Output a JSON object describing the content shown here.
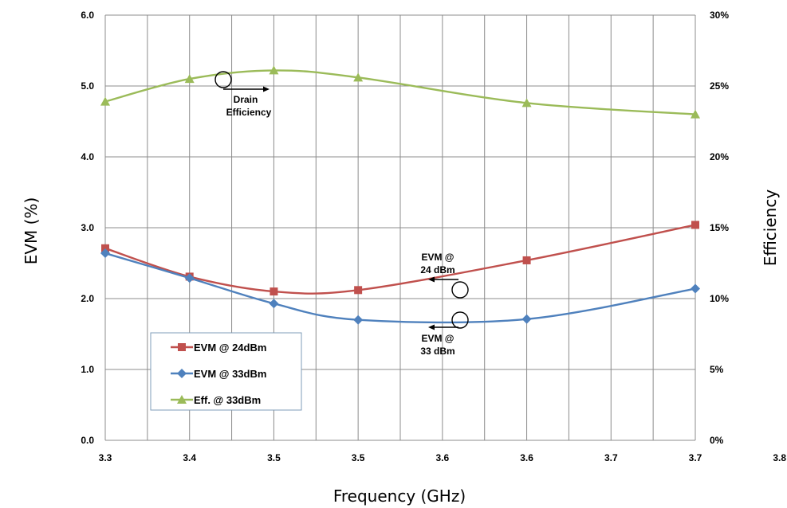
{
  "chart_data": {
    "type": "line",
    "x_ticks": [
      "3.3",
      "3.4",
      "3.5",
      "3.5",
      "3.6",
      "3.6",
      "3.7",
      "3.7",
      "3.8"
    ],
    "y_left_ticks": [
      "0.0",
      "1.0",
      "2.0",
      "3.0",
      "4.0",
      "5.0",
      "6.0"
    ],
    "y_right_ticks": [
      "0%",
      "5%",
      "10%",
      "15%",
      "20%",
      "25%",
      "30%"
    ],
    "xlabel": "Frequency (GHz)",
    "ylabel": "EVM (%)",
    "ylabel_right": "Efficiency",
    "ylim": [
      0,
      6
    ],
    "ylim_right": [
      0,
      30
    ],
    "grid": true,
    "legend_position": "bottom-left",
    "series": [
      {
        "name": "EVM @ 24dBm",
        "axis": "left",
        "color": "#c0504d",
        "marker": "square",
        "points": [
          [
            0,
            2.71
          ],
          [
            2,
            2.31
          ],
          [
            4,
            2.1
          ],
          [
            6,
            2.12
          ],
          [
            10,
            2.54
          ],
          [
            14,
            3.04
          ]
        ]
      },
      {
        "name": "EVM @ 33dBm",
        "axis": "left",
        "color": "#4f81bd",
        "marker": "diamond",
        "points": [
          [
            0,
            2.64
          ],
          [
            2,
            2.29
          ],
          [
            4,
            1.93
          ],
          [
            6,
            1.7
          ],
          [
            10,
            1.71
          ],
          [
            14,
            2.14
          ]
        ]
      },
      {
        "name": "Eff. @ 33dBm",
        "axis": "right",
        "color": "#9bbb59",
        "marker": "triangle",
        "points": [
          [
            0,
            23.9
          ],
          [
            2,
            25.5
          ],
          [
            4,
            26.1
          ],
          [
            6,
            25.6
          ],
          [
            10,
            23.8
          ],
          [
            14,
            23.0
          ]
        ]
      }
    ],
    "annotations": [
      {
        "lines": [
          "Drain",
          "Efficiency"
        ]
      },
      {
        "lines": [
          "EVM @",
          "24 dBm"
        ]
      },
      {
        "lines": [
          "EVM @",
          "33 dBm"
        ]
      }
    ]
  }
}
